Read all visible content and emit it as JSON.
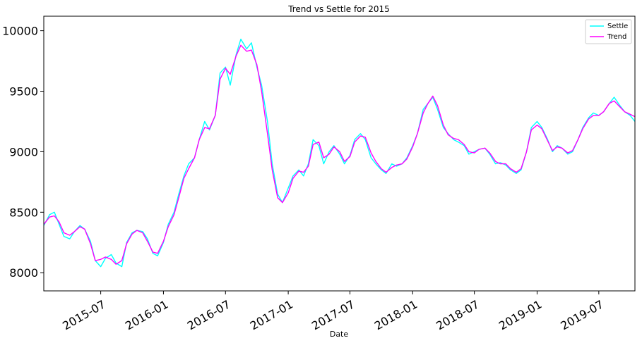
{
  "chart_data": {
    "type": "line",
    "title": "Trend vs Settle for 2015",
    "xlabel": "Date",
    "ylabel": "",
    "x_range": [
      "2015-01-15",
      "2019-10-15"
    ],
    "ylim": [
      7850,
      10120
    ],
    "y_ticks": [
      8000,
      8500,
      9000,
      9500,
      10000
    ],
    "x_ticks": [
      "2015-07",
      "2016-01",
      "2016-07",
      "2017-01",
      "2017-07",
      "2018-01",
      "2018-07",
      "2019-01",
      "2019-07"
    ],
    "grid": false,
    "legend_position": "top-right",
    "series": [
      {
        "name": "Settle",
        "color": "#00ffff",
        "points": [
          [
            "2015-01-15",
            8390
          ],
          [
            "2015-02-01",
            8480
          ],
          [
            "2015-02-15",
            8500
          ],
          [
            "2015-03-01",
            8400
          ],
          [
            "2015-03-15",
            8300
          ],
          [
            "2015-04-01",
            8280
          ],
          [
            "2015-04-15",
            8340
          ],
          [
            "2015-05-01",
            8390
          ],
          [
            "2015-05-15",
            8360
          ],
          [
            "2015-06-01",
            8260
          ],
          [
            "2015-06-15",
            8100
          ],
          [
            "2015-07-01",
            8050
          ],
          [
            "2015-07-15",
            8120
          ],
          [
            "2015-08-01",
            8150
          ],
          [
            "2015-08-15",
            8080
          ],
          [
            "2015-09-01",
            8050
          ],
          [
            "2015-09-15",
            8250
          ],
          [
            "2015-10-01",
            8330
          ],
          [
            "2015-10-15",
            8350
          ],
          [
            "2015-11-01",
            8340
          ],
          [
            "2015-11-15",
            8280
          ],
          [
            "2015-12-01",
            8160
          ],
          [
            "2015-12-15",
            8140
          ],
          [
            "2016-01-01",
            8250
          ],
          [
            "2016-01-15",
            8400
          ],
          [
            "2016-02-01",
            8500
          ],
          [
            "2016-02-15",
            8650
          ],
          [
            "2016-03-01",
            8800
          ],
          [
            "2016-03-15",
            8900
          ],
          [
            "2016-04-01",
            8950
          ],
          [
            "2016-04-15",
            9100
          ],
          [
            "2016-05-01",
            9250
          ],
          [
            "2016-05-15",
            9180
          ],
          [
            "2016-06-01",
            9300
          ],
          [
            "2016-06-15",
            9650
          ],
          [
            "2016-07-01",
            9700
          ],
          [
            "2016-07-15",
            9550
          ],
          [
            "2016-08-01",
            9800
          ],
          [
            "2016-08-15",
            9930
          ],
          [
            "2016-09-01",
            9850
          ],
          [
            "2016-09-15",
            9900
          ],
          [
            "2016-10-01",
            9700
          ],
          [
            "2016-10-15",
            9550
          ],
          [
            "2016-11-01",
            9250
          ],
          [
            "2016-11-15",
            8900
          ],
          [
            "2016-12-01",
            8650
          ],
          [
            "2016-12-15",
            8580
          ],
          [
            "2017-01-01",
            8700
          ],
          [
            "2017-01-15",
            8800
          ],
          [
            "2017-02-01",
            8850
          ],
          [
            "2017-02-15",
            8800
          ],
          [
            "2017-03-01",
            8900
          ],
          [
            "2017-03-15",
            9100
          ],
          [
            "2017-04-01",
            9050
          ],
          [
            "2017-04-15",
            8900
          ],
          [
            "2017-05-01",
            9000
          ],
          [
            "2017-05-15",
            9050
          ],
          [
            "2017-06-01",
            8980
          ],
          [
            "2017-06-15",
            8900
          ],
          [
            "2017-07-01",
            8970
          ],
          [
            "2017-07-15",
            9100
          ],
          [
            "2017-08-01",
            9150
          ],
          [
            "2017-08-15",
            9100
          ],
          [
            "2017-09-01",
            8950
          ],
          [
            "2017-09-15",
            8900
          ],
          [
            "2017-10-01",
            8850
          ],
          [
            "2017-10-15",
            8820
          ],
          [
            "2017-11-01",
            8900
          ],
          [
            "2017-11-15",
            8880
          ],
          [
            "2017-12-01",
            8900
          ],
          [
            "2017-12-15",
            8950
          ],
          [
            "2018-01-01",
            9050
          ],
          [
            "2018-01-15",
            9150
          ],
          [
            "2018-02-01",
            9350
          ],
          [
            "2018-02-15",
            9400
          ],
          [
            "2018-03-01",
            9450
          ],
          [
            "2018-03-15",
            9350
          ],
          [
            "2018-04-01",
            9200
          ],
          [
            "2018-04-15",
            9150
          ],
          [
            "2018-05-01",
            9100
          ],
          [
            "2018-05-15",
            9080
          ],
          [
            "2018-06-01",
            9050
          ],
          [
            "2018-06-15",
            8980
          ],
          [
            "2018-07-01",
            9000
          ],
          [
            "2018-07-15",
            9020
          ],
          [
            "2018-08-01",
            9030
          ],
          [
            "2018-08-15",
            8980
          ],
          [
            "2018-09-01",
            8900
          ],
          [
            "2018-09-15",
            8910
          ],
          [
            "2018-10-01",
            8890
          ],
          [
            "2018-10-15",
            8850
          ],
          [
            "2018-11-01",
            8820
          ],
          [
            "2018-11-15",
            8850
          ],
          [
            "2018-12-01",
            9000
          ],
          [
            "2018-12-15",
            9200
          ],
          [
            "2019-01-01",
            9250
          ],
          [
            "2019-01-15",
            9200
          ],
          [
            "2019-02-01",
            9100
          ],
          [
            "2019-02-15",
            9000
          ],
          [
            "2019-03-01",
            9050
          ],
          [
            "2019-03-15",
            9030
          ],
          [
            "2019-04-01",
            8980
          ],
          [
            "2019-04-15",
            9000
          ],
          [
            "2019-05-01",
            9100
          ],
          [
            "2019-05-15",
            9200
          ],
          [
            "2019-06-01",
            9280
          ],
          [
            "2019-06-15",
            9320
          ],
          [
            "2019-07-01",
            9300
          ],
          [
            "2019-07-15",
            9330
          ],
          [
            "2019-08-01",
            9400
          ],
          [
            "2019-08-15",
            9450
          ],
          [
            "2019-09-01",
            9380
          ],
          [
            "2019-09-15",
            9330
          ],
          [
            "2019-10-01",
            9300
          ],
          [
            "2019-10-15",
            9250
          ]
        ]
      },
      {
        "name": "Trend",
        "color": "#ff00ff",
        "points": [
          [
            "2015-01-15",
            8400
          ],
          [
            "2015-02-01",
            8460
          ],
          [
            "2015-02-15",
            8470
          ],
          [
            "2015-03-01",
            8420
          ],
          [
            "2015-03-15",
            8330
          ],
          [
            "2015-04-01",
            8310
          ],
          [
            "2015-04-15",
            8340
          ],
          [
            "2015-05-01",
            8380
          ],
          [
            "2015-05-15",
            8360
          ],
          [
            "2015-06-01",
            8240
          ],
          [
            "2015-06-15",
            8100
          ],
          [
            "2015-07-01",
            8110
          ],
          [
            "2015-07-15",
            8130
          ],
          [
            "2015-08-01",
            8110
          ],
          [
            "2015-08-15",
            8070
          ],
          [
            "2015-09-01",
            8100
          ],
          [
            "2015-09-15",
            8240
          ],
          [
            "2015-10-01",
            8320
          ],
          [
            "2015-10-15",
            8350
          ],
          [
            "2015-11-01",
            8330
          ],
          [
            "2015-11-15",
            8260
          ],
          [
            "2015-12-01",
            8170
          ],
          [
            "2015-12-15",
            8160
          ],
          [
            "2016-01-01",
            8260
          ],
          [
            "2016-01-15",
            8380
          ],
          [
            "2016-02-01",
            8480
          ],
          [
            "2016-02-15",
            8620
          ],
          [
            "2016-03-01",
            8780
          ],
          [
            "2016-03-15",
            8860
          ],
          [
            "2016-04-01",
            8950
          ],
          [
            "2016-04-15",
            9100
          ],
          [
            "2016-05-01",
            9200
          ],
          [
            "2016-05-15",
            9190
          ],
          [
            "2016-06-01",
            9300
          ],
          [
            "2016-06-15",
            9600
          ],
          [
            "2016-07-01",
            9690
          ],
          [
            "2016-07-15",
            9640
          ],
          [
            "2016-08-01",
            9790
          ],
          [
            "2016-08-15",
            9880
          ],
          [
            "2016-09-01",
            9830
          ],
          [
            "2016-09-15",
            9840
          ],
          [
            "2016-10-01",
            9720
          ],
          [
            "2016-10-15",
            9500
          ],
          [
            "2016-11-01",
            9150
          ],
          [
            "2016-11-15",
            8850
          ],
          [
            "2016-12-01",
            8620
          ],
          [
            "2016-12-15",
            8580
          ],
          [
            "2017-01-01",
            8660
          ],
          [
            "2017-01-15",
            8780
          ],
          [
            "2017-02-01",
            8840
          ],
          [
            "2017-02-15",
            8830
          ],
          [
            "2017-03-01",
            8880
          ],
          [
            "2017-03-15",
            9060
          ],
          [
            "2017-04-01",
            9080
          ],
          [
            "2017-04-15",
            8950
          ],
          [
            "2017-05-01",
            8980
          ],
          [
            "2017-05-15",
            9040
          ],
          [
            "2017-06-01",
            9000
          ],
          [
            "2017-06-15",
            8920
          ],
          [
            "2017-07-01",
            8960
          ],
          [
            "2017-07-15",
            9080
          ],
          [
            "2017-08-01",
            9130
          ],
          [
            "2017-08-15",
            9120
          ],
          [
            "2017-09-01",
            8990
          ],
          [
            "2017-09-15",
            8920
          ],
          [
            "2017-10-01",
            8860
          ],
          [
            "2017-10-15",
            8830
          ],
          [
            "2017-11-01",
            8870
          ],
          [
            "2017-11-15",
            8890
          ],
          [
            "2017-12-01",
            8900
          ],
          [
            "2017-12-15",
            8940
          ],
          [
            "2018-01-01",
            9040
          ],
          [
            "2018-01-15",
            9150
          ],
          [
            "2018-02-01",
            9320
          ],
          [
            "2018-02-15",
            9400
          ],
          [
            "2018-03-01",
            9460
          ],
          [
            "2018-03-15",
            9380
          ],
          [
            "2018-04-01",
            9220
          ],
          [
            "2018-04-15",
            9140
          ],
          [
            "2018-05-01",
            9110
          ],
          [
            "2018-05-15",
            9100
          ],
          [
            "2018-06-01",
            9060
          ],
          [
            "2018-06-15",
            9000
          ],
          [
            "2018-07-01",
            8990
          ],
          [
            "2018-07-15",
            9020
          ],
          [
            "2018-08-01",
            9030
          ],
          [
            "2018-08-15",
            8990
          ],
          [
            "2018-09-01",
            8920
          ],
          [
            "2018-09-15",
            8900
          ],
          [
            "2018-10-01",
            8900
          ],
          [
            "2018-10-15",
            8860
          ],
          [
            "2018-11-01",
            8830
          ],
          [
            "2018-11-15",
            8860
          ],
          [
            "2018-12-01",
            9000
          ],
          [
            "2018-12-15",
            9180
          ],
          [
            "2019-01-01",
            9220
          ],
          [
            "2019-01-15",
            9190
          ],
          [
            "2019-02-01",
            9090
          ],
          [
            "2019-02-15",
            9010
          ],
          [
            "2019-03-01",
            9040
          ],
          [
            "2019-03-15",
            9030
          ],
          [
            "2019-04-01",
            8990
          ],
          [
            "2019-04-15",
            9010
          ],
          [
            "2019-05-01",
            9100
          ],
          [
            "2019-05-15",
            9190
          ],
          [
            "2019-06-01",
            9270
          ],
          [
            "2019-06-15",
            9300
          ],
          [
            "2019-07-01",
            9300
          ],
          [
            "2019-07-15",
            9330
          ],
          [
            "2019-08-01",
            9400
          ],
          [
            "2019-08-15",
            9420
          ],
          [
            "2019-09-01",
            9370
          ],
          [
            "2019-09-15",
            9330
          ],
          [
            "2019-10-01",
            9310
          ],
          [
            "2019-10-15",
            9290
          ]
        ]
      }
    ]
  }
}
